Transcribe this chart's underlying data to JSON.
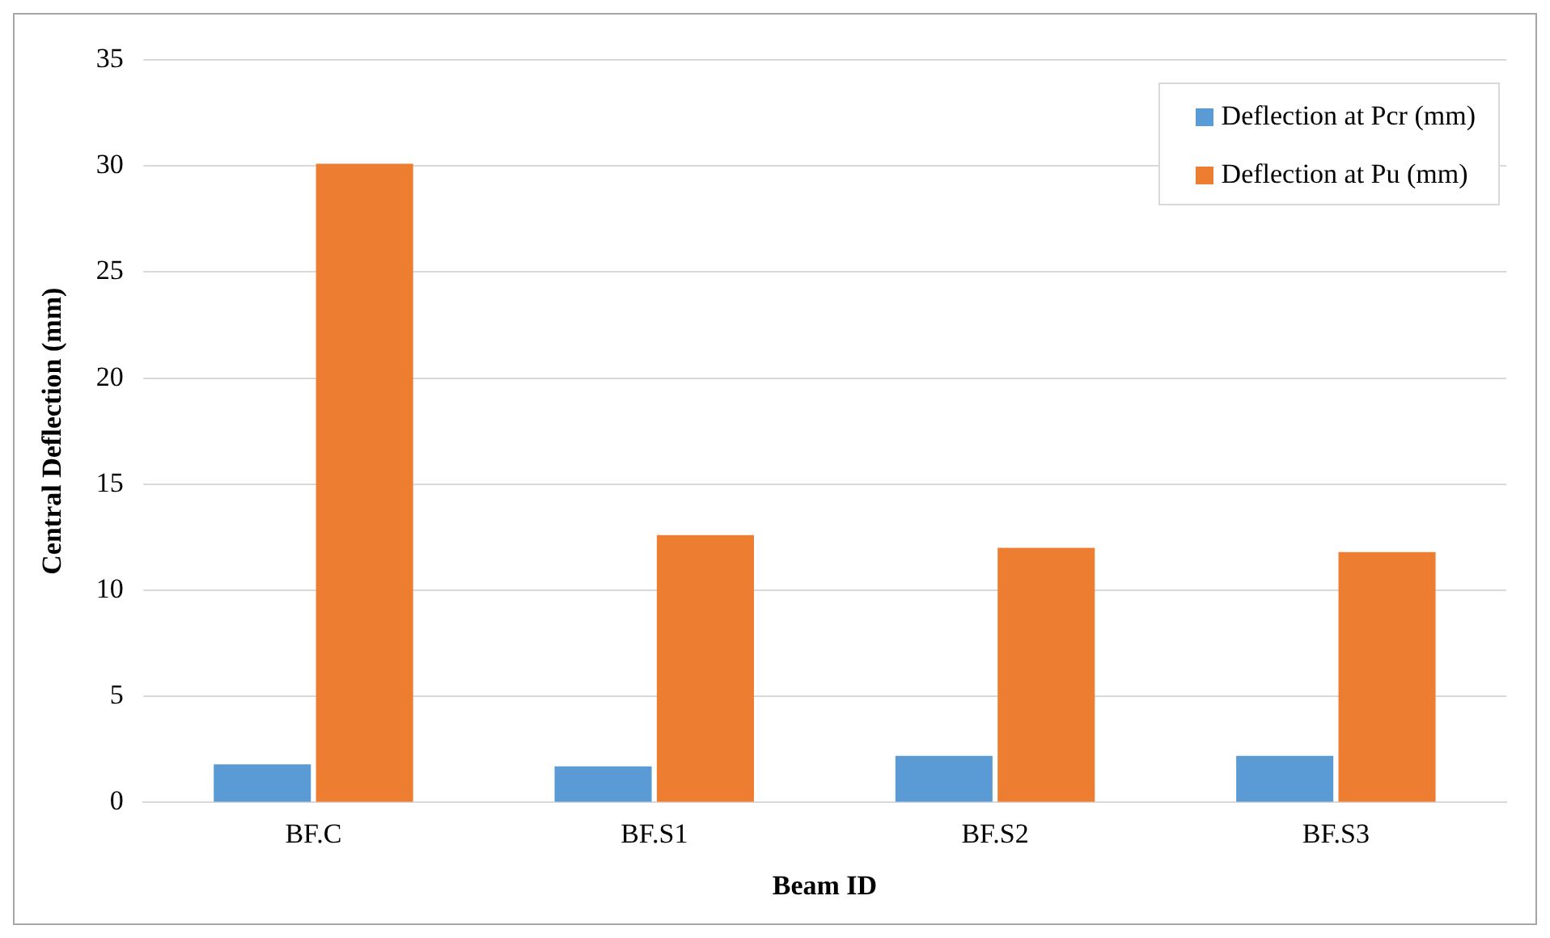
{
  "chart_data": {
    "type": "bar",
    "xlabel": "Beam ID",
    "ylabel": "Central Deflection (mm)",
    "categories": [
      "BF.C",
      "BF.S1",
      "BF.S2",
      "BF.S3"
    ],
    "series": [
      {
        "name": "Deflection at Pcr (mm)",
        "color": "#5b9bd5",
        "values": [
          1.8,
          1.7,
          2.2,
          2.2
        ]
      },
      {
        "name": "Deflection at Pu (mm)",
        "color": "#ed7d31",
        "values": [
          30.1,
          12.6,
          12.0,
          11.8
        ]
      }
    ],
    "ylim": [
      0,
      35
    ],
    "yticks": [
      0,
      5,
      10,
      15,
      20,
      25,
      30,
      35
    ],
    "grid": "y",
    "legend": "top right"
  }
}
